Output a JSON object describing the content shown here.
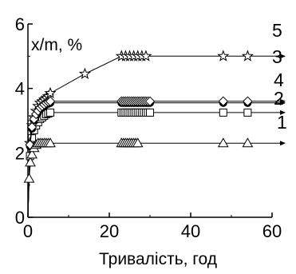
{
  "chart_data": {
    "type": "line",
    "ylabel": "x/m, %",
    "xlabel": "Тривалість, год",
    "xlim": [
      0,
      60
    ],
    "ylim": [
      0,
      6
    ],
    "xticks": [
      0,
      20,
      40,
      60
    ],
    "yticks": [
      0,
      2,
      4,
      6
    ],
    "xtick_labels": [
      "0",
      "20",
      "40",
      "60"
    ],
    "ytick_labels": [
      "0",
      "2",
      "4",
      "6"
    ],
    "grid": false,
    "legend": "none; curves numbered 1-5 at right end",
    "series": [
      {
        "label": "1",
        "marker": "square",
        "x": [
          0,
          0.5,
          1,
          1.5,
          2,
          2.5,
          3,
          3.5,
          4,
          4.5,
          5,
          5.5,
          23,
          23.5,
          24,
          24.5,
          25,
          25.5,
          26,
          26.5,
          27,
          27.5,
          28,
          28.5,
          29,
          29.5,
          30,
          48,
          54
        ],
        "y": [
          0.0,
          1.9,
          2.45,
          2.7,
          2.85,
          2.95,
          3.05,
          3.1,
          3.15,
          3.2,
          3.22,
          3.25,
          3.25,
          3.25,
          3.25,
          3.25,
          3.25,
          3.25,
          3.25,
          3.25,
          3.25,
          3.25,
          3.25,
          3.25,
          3.25,
          3.25,
          3.25,
          3.25,
          3.25
        ]
      },
      {
        "label": "2",
        "marker": "filled-circle",
        "x": [
          0,
          0.5,
          1,
          1.5,
          2,
          2.5,
          3,
          3.5,
          4,
          4.5,
          5,
          5.5,
          23,
          23.5,
          24,
          24.5,
          25,
          25.5,
          26,
          26.5,
          27,
          27.5,
          28,
          28.5,
          29,
          29.5,
          30,
          48,
          54
        ],
        "y": [
          0.0,
          2.2,
          2.75,
          3.0,
          3.15,
          3.25,
          3.35,
          3.4,
          3.45,
          3.5,
          3.52,
          3.55,
          3.55,
          3.55,
          3.55,
          3.55,
          3.55,
          3.55,
          3.55,
          3.55,
          3.55,
          3.55,
          3.55,
          3.55,
          3.55,
          3.55,
          3.55,
          3.55,
          3.55
        ]
      },
      {
        "label": "3",
        "marker": "star",
        "x": [
          0,
          0.5,
          1,
          1.5,
          2,
          2.5,
          3,
          3.5,
          4,
          4.5,
          5,
          5.5,
          14,
          23,
          24,
          25,
          26,
          27,
          28,
          29,
          48,
          54
        ],
        "y": [
          0.0,
          2.3,
          2.85,
          3.1,
          3.3,
          3.45,
          3.55,
          3.6,
          3.65,
          3.7,
          3.75,
          3.85,
          4.45,
          5.0,
          5.0,
          5.0,
          5.0,
          5.0,
          5.0,
          5.0,
          5.0,
          5.0
        ]
      },
      {
        "label": "4",
        "marker": "diamond",
        "x": [
          0,
          0.5,
          1,
          1.5,
          2,
          2.5,
          3,
          3.5,
          4,
          4.5,
          5,
          5.5,
          23,
          23.5,
          24,
          24.5,
          25,
          25.5,
          26,
          26.5,
          27,
          27.5,
          28,
          28.5,
          29,
          29.5,
          30,
          48,
          54
        ],
        "y": [
          0.0,
          2.25,
          2.8,
          3.05,
          3.2,
          3.3,
          3.4,
          3.45,
          3.5,
          3.55,
          3.58,
          3.6,
          3.6,
          3.6,
          3.6,
          3.6,
          3.6,
          3.6,
          3.6,
          3.6,
          3.6,
          3.6,
          3.6,
          3.6,
          3.6,
          3.6,
          3.6,
          3.6,
          3.6
        ]
      },
      {
        "label": "5",
        "marker": "triangle",
        "x": [
          0,
          0.3,
          0.6,
          1,
          1.5,
          2,
          2.5,
          3,
          3.5,
          4,
          4.5,
          5,
          5.5,
          23,
          23.5,
          24,
          24.5,
          25,
          25.5,
          26,
          26.5,
          27,
          48,
          54
        ],
        "y": [
          0.0,
          1.2,
          1.7,
          1.95,
          2.15,
          2.25,
          2.3,
          2.3,
          2.3,
          2.3,
          2.3,
          2.3,
          2.3,
          2.3,
          2.3,
          2.3,
          2.3,
          2.3,
          2.3,
          2.3,
          2.3,
          2.3,
          2.3,
          2.3
        ]
      }
    ]
  }
}
